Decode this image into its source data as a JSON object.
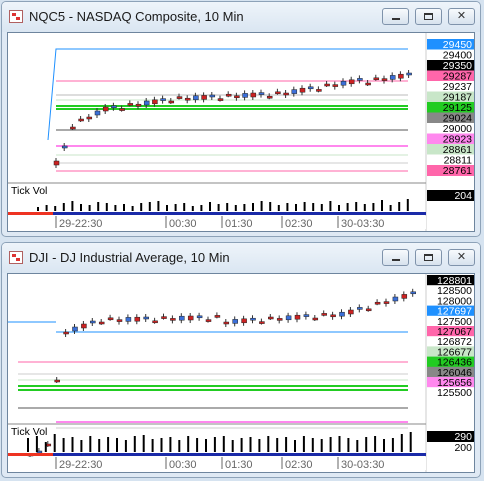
{
  "windows": [
    {
      "title": "NQC5 - NASDAQ Composite, 10 Min",
      "price_labels": [
        {
          "text": "29450",
          "bg": "#1e90ff",
          "fg": "#ffffff"
        },
        {
          "text": "29400",
          "bg": "#ffffff",
          "fg": "#000000"
        },
        {
          "text": "29350",
          "bg": "#000000",
          "fg": "#ffffff"
        },
        {
          "text": "29287",
          "bg": "#ff66aa",
          "fg": "#000000"
        },
        {
          "text": "29237",
          "bg": "#ffffff",
          "fg": "#000000"
        },
        {
          "text": "29187",
          "bg": "#c8e6c8",
          "fg": "#000000"
        },
        {
          "text": "29125",
          "bg": "#22cc22",
          "fg": "#000000"
        },
        {
          "text": "29024",
          "bg": "#888888",
          "fg": "#000000"
        },
        {
          "text": "29000",
          "bg": "#ffffff",
          "fg": "#000000"
        },
        {
          "text": "28923",
          "bg": "#ff88ee",
          "fg": "#000000"
        },
        {
          "text": "28861",
          "bg": "#c8e6c8",
          "fg": "#000000"
        },
        {
          "text": "28811",
          "bg": "#ffffff",
          "fg": "#000000"
        },
        {
          "text": "28761",
          "bg": "#ff66aa",
          "fg": "#000000"
        }
      ],
      "volume": {
        "label": "Tick Vol",
        "value": "204"
      },
      "time_labels": [
        "29-22:30",
        "00:30",
        "01:30",
        "02:30",
        "30-03:30"
      ]
    },
    {
      "title": "DJI - DJ Industrial Average, 10 Min",
      "price_labels": [
        {
          "text": "128801",
          "bg": "#000000",
          "fg": "#ffffff"
        },
        {
          "text": "128500",
          "bg": "#ffffff",
          "fg": "#000000"
        },
        {
          "text": "128000",
          "bg": "#ffffff",
          "fg": "#000000"
        },
        {
          "text": "127697",
          "bg": "#1e90ff",
          "fg": "#ffffff"
        },
        {
          "text": "127500",
          "bg": "#ffffff",
          "fg": "#000000"
        },
        {
          "text": "127067",
          "bg": "#ff66aa",
          "fg": "#000000"
        },
        {
          "text": "126872",
          "bg": "#ffffff",
          "fg": "#000000"
        },
        {
          "text": "126677",
          "bg": "#c8e6c8",
          "fg": "#000000"
        },
        {
          "text": "126436",
          "bg": "#22cc22",
          "fg": "#000000"
        },
        {
          "text": "126046",
          "bg": "#888888",
          "fg": "#000000"
        },
        {
          "text": "125656",
          "bg": "#ff88ee",
          "fg": "#000000"
        },
        {
          "text": "125500",
          "bg": "#ffffff",
          "fg": "#000000"
        }
      ],
      "volume": {
        "label": "Tick Vol",
        "value": "290",
        "value2": "200"
      },
      "time_labels": [
        "29-22:30",
        "00:30",
        "01:30",
        "02:30",
        "30-03:30"
      ]
    }
  ]
}
